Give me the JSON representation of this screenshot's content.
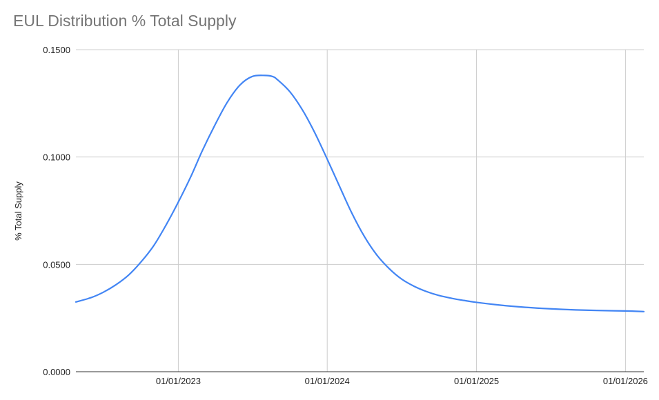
{
  "chart_data": {
    "type": "line",
    "title": "EUL Distribution % Total Supply",
    "xlabel": "",
    "ylabel": "% Total Supply",
    "ylim": [
      0,
      0.15
    ],
    "yticks": [
      "0.0000",
      "0.0500",
      "0.1000",
      "0.1500"
    ],
    "xticks": [
      "01/01/2023",
      "01/01/2024",
      "01/01/2025",
      "01/01/2026"
    ],
    "xlim": [
      "2022-04-25",
      "2026-02-15"
    ],
    "grid": true,
    "legend": "none",
    "colors": {
      "line": "#4285F4",
      "grid": "#cccccc",
      "axis": "#333333"
    },
    "series": [
      {
        "x": [
          "2022-04-25",
          "2022-06-01",
          "2022-07-01",
          "2022-08-01",
          "2022-09-01",
          "2022-10-01",
          "2022-11-01",
          "2022-12-01",
          "2023-01-01",
          "2023-02-01",
          "2023-03-01",
          "2023-04-01",
          "2023-05-01",
          "2023-06-01",
          "2023-07-01",
          "2023-08-01",
          "2023-08-20",
          "2023-09-01",
          "2023-10-01",
          "2023-11-01",
          "2023-12-01",
          "2024-01-01",
          "2024-02-01",
          "2024-03-01",
          "2024-04-01",
          "2024-05-01",
          "2024-06-01",
          "2024-07-01",
          "2024-08-01",
          "2024-09-01",
          "2024-10-01",
          "2024-11-01",
          "2024-12-01",
          "2025-01-01",
          "2025-03-01",
          "2025-05-01",
          "2025-07-01",
          "2025-09-01",
          "2025-11-01",
          "2026-01-01",
          "2026-02-15"
        ],
        "values": [
          0.0325,
          0.0345,
          0.037,
          0.0405,
          0.045,
          0.051,
          0.0585,
          0.068,
          0.079,
          0.091,
          0.103,
          0.115,
          0.1255,
          0.1335,
          0.1375,
          0.138,
          0.1375,
          0.136,
          0.1305,
          0.122,
          0.1115,
          0.099,
          0.086,
          0.074,
          0.063,
          0.0545,
          0.048,
          0.0432,
          0.0398,
          0.0373,
          0.0355,
          0.0342,
          0.0332,
          0.0323,
          0.031,
          0.03,
          0.0293,
          0.0288,
          0.0285,
          0.0283,
          0.028
        ]
      }
    ]
  }
}
